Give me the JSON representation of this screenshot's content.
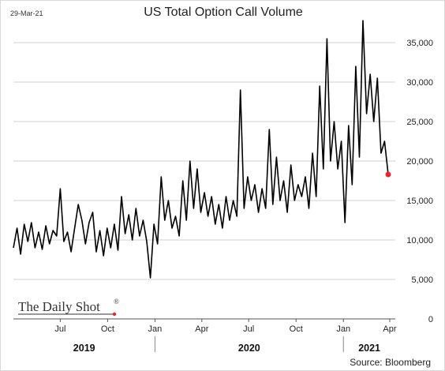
{
  "date_stamp": "29-Mar-21",
  "title": "US Total Option Call Volume",
  "source": "Source: Bloomberg",
  "logo_text": "The Daily Shot",
  "logo_mark": "®",
  "colors": {
    "line": "#000000",
    "end_dot": "#e8262b",
    "grid": "#d0d0d0",
    "axis": "#555555"
  },
  "chart_data": {
    "type": "line",
    "title": "US Total Option Call Volume",
    "x_range": [
      "2019-04-01",
      "2021-03-29"
    ],
    "ylim": [
      0,
      37500
    ],
    "y_ticks": [
      0,
      5000,
      10000,
      15000,
      20000,
      25000,
      30000,
      35000
    ],
    "y_tick_labels": [
      "0",
      "5,000",
      "10,000",
      "15,000",
      "20,000",
      "25,000",
      "30,000",
      "35,000"
    ],
    "x_ticks": [
      {
        "date": "2019-07-01",
        "label": "Jul"
      },
      {
        "date": "2019-10-01",
        "label": "Oct"
      },
      {
        "date": "2020-01-01",
        "label": "Jan"
      },
      {
        "date": "2020-04-01",
        "label": "Apr"
      },
      {
        "date": "2020-07-01",
        "label": "Jul"
      },
      {
        "date": "2020-10-01",
        "label": "Oct"
      },
      {
        "date": "2021-01-01",
        "label": "Jan"
      },
      {
        "date": "2021-04-01",
        "label": "Apr"
      }
    ],
    "year_labels": [
      {
        "label": "2019",
        "from": "2019-04-01",
        "to": "2020-01-01"
      },
      {
        "label": "2020",
        "from": "2020-01-01",
        "to": "2021-01-01"
      },
      {
        "label": "2021",
        "from": "2021-01-01",
        "to": "2021-04-15"
      }
    ],
    "series": [
      {
        "points": [
          [
            "2019-04-01",
            9000
          ],
          [
            "2019-04-08",
            11500
          ],
          [
            "2019-04-15",
            8200
          ],
          [
            "2019-04-22",
            12000
          ],
          [
            "2019-04-29",
            9800
          ],
          [
            "2019-05-06",
            12200
          ],
          [
            "2019-05-13",
            9000
          ],
          [
            "2019-05-20",
            11000
          ],
          [
            "2019-05-27",
            8800
          ],
          [
            "2019-06-03",
            11800
          ],
          [
            "2019-06-10",
            9500
          ],
          [
            "2019-06-17",
            11200
          ],
          [
            "2019-06-24",
            10500
          ],
          [
            "2019-07-01",
            16500
          ],
          [
            "2019-07-08",
            9800
          ],
          [
            "2019-07-15",
            11000
          ],
          [
            "2019-07-22",
            8500
          ],
          [
            "2019-07-29",
            11500
          ],
          [
            "2019-08-05",
            14500
          ],
          [
            "2019-08-12",
            12500
          ],
          [
            "2019-08-19",
            9500
          ],
          [
            "2019-08-26",
            12200
          ],
          [
            "2019-09-02",
            13500
          ],
          [
            "2019-09-09",
            8500
          ],
          [
            "2019-09-16",
            11200
          ],
          [
            "2019-09-23",
            8000
          ],
          [
            "2019-09-30",
            11500
          ],
          [
            "2019-10-07",
            9000
          ],
          [
            "2019-10-14",
            12000
          ],
          [
            "2019-10-21",
            8700
          ],
          [
            "2019-10-28",
            15500
          ],
          [
            "2019-11-04",
            10800
          ],
          [
            "2019-11-11",
            13200
          ],
          [
            "2019-11-18",
            10000
          ],
          [
            "2019-11-25",
            14000
          ],
          [
            "2019-12-02",
            10500
          ],
          [
            "2019-12-09",
            12500
          ],
          [
            "2019-12-16",
            9800
          ],
          [
            "2019-12-23",
            5200
          ],
          [
            "2019-12-30",
            12000
          ],
          [
            "2020-01-06",
            9500
          ],
          [
            "2020-01-13",
            18000
          ],
          [
            "2020-01-20",
            12500
          ],
          [
            "2020-01-27",
            15000
          ],
          [
            "2020-02-03",
            11500
          ],
          [
            "2020-02-10",
            13000
          ],
          [
            "2020-02-17",
            10500
          ],
          [
            "2020-02-24",
            17500
          ],
          [
            "2020-03-02",
            12500
          ],
          [
            "2020-03-09",
            20000
          ],
          [
            "2020-03-16",
            14000
          ],
          [
            "2020-03-23",
            19000
          ],
          [
            "2020-03-30",
            13500
          ],
          [
            "2020-04-06",
            16000
          ],
          [
            "2020-04-13",
            13000
          ],
          [
            "2020-04-20",
            15500
          ],
          [
            "2020-04-27",
            12000
          ],
          [
            "2020-05-04",
            14500
          ],
          [
            "2020-05-11",
            11500
          ],
          [
            "2020-05-18",
            15500
          ],
          [
            "2020-05-25",
            12500
          ],
          [
            "2020-06-01",
            15000
          ],
          [
            "2020-06-08",
            13000
          ],
          [
            "2020-06-15",
            29000
          ],
          [
            "2020-06-22",
            14000
          ],
          [
            "2020-06-29",
            18000
          ],
          [
            "2020-07-06",
            15000
          ],
          [
            "2020-07-13",
            17000
          ],
          [
            "2020-07-20",
            13500
          ],
          [
            "2020-07-27",
            16500
          ],
          [
            "2020-08-03",
            14000
          ],
          [
            "2020-08-10",
            24000
          ],
          [
            "2020-08-17",
            14500
          ],
          [
            "2020-08-24",
            20500
          ],
          [
            "2020-08-31",
            15000
          ],
          [
            "2020-09-07",
            17500
          ],
          [
            "2020-09-14",
            13500
          ],
          [
            "2020-09-21",
            19500
          ],
          [
            "2020-09-28",
            15000
          ],
          [
            "2020-10-05",
            17000
          ],
          [
            "2020-10-12",
            15500
          ],
          [
            "2020-10-19",
            18000
          ],
          [
            "2020-10-26",
            14000
          ],
          [
            "2020-11-02",
            21000
          ],
          [
            "2020-11-09",
            15500
          ],
          [
            "2020-11-16",
            29500
          ],
          [
            "2020-11-23",
            19000
          ],
          [
            "2020-11-30",
            35500
          ],
          [
            "2020-12-07",
            20000
          ],
          [
            "2020-12-14",
            25000
          ],
          [
            "2020-12-21",
            19000
          ],
          [
            "2020-12-28",
            22500
          ],
          [
            "2021-01-04",
            12200
          ],
          [
            "2021-01-11",
            24500
          ],
          [
            "2021-01-18",
            17000
          ],
          [
            "2021-01-25",
            32000
          ],
          [
            "2021-02-01",
            20500
          ],
          [
            "2021-02-08",
            37800
          ],
          [
            "2021-02-15",
            26000
          ],
          [
            "2021-02-22",
            31000
          ],
          [
            "2021-03-01",
            25000
          ],
          [
            "2021-03-08",
            30500
          ],
          [
            "2021-03-15",
            21000
          ],
          [
            "2021-03-22",
            22500
          ],
          [
            "2021-03-29",
            18300
          ]
        ]
      }
    ]
  }
}
